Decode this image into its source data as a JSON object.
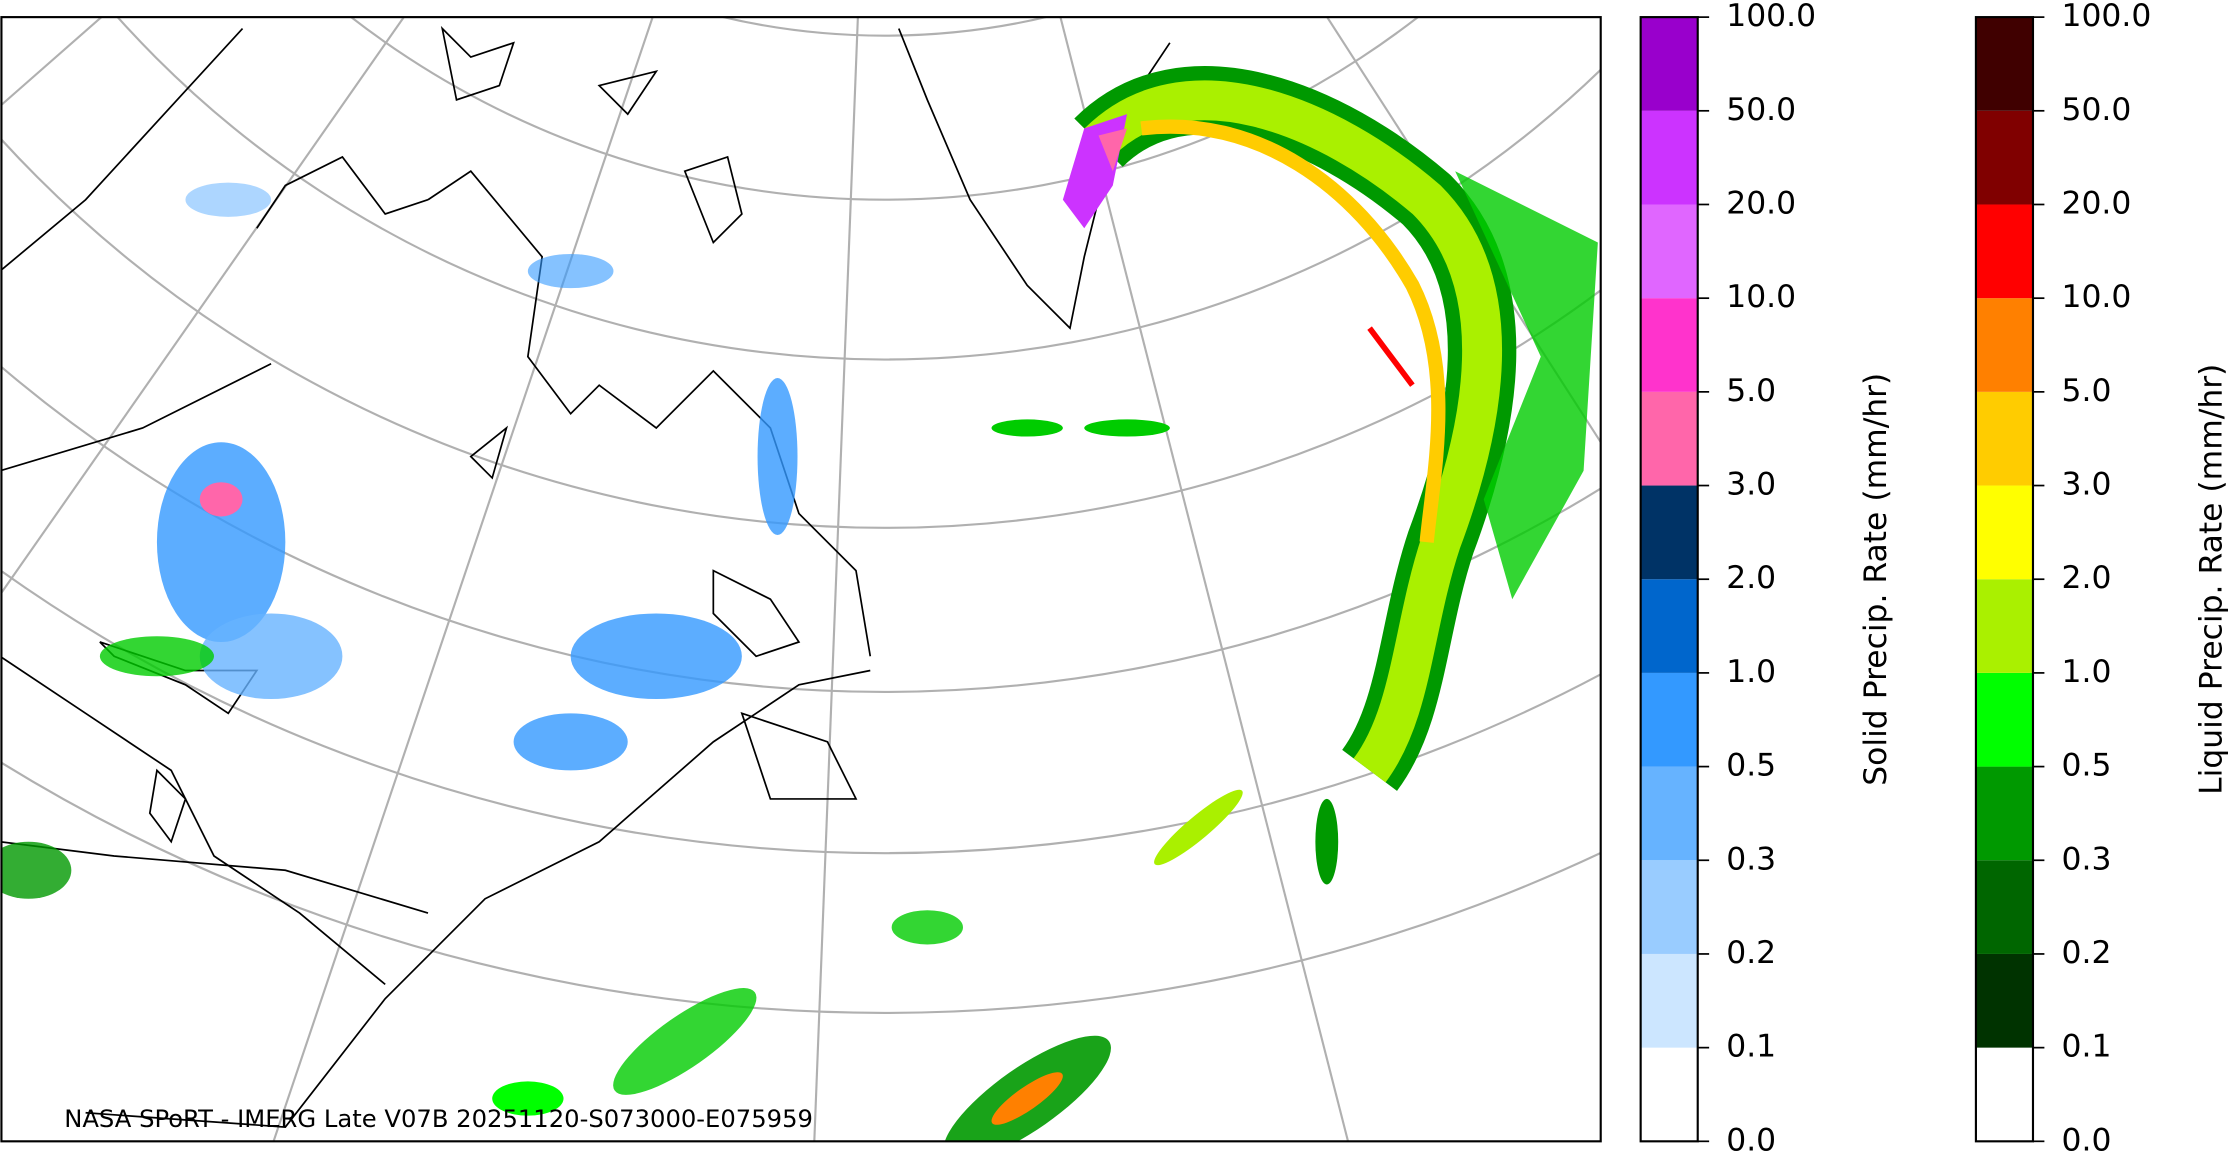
{
  "map": {
    "credit": "NASA SPoRT - IMERG Late V07B 20251120-S073000-E075959"
  },
  "colorbars": [
    {
      "label": "Solid Precip. Rate (mm/hr)",
      "ticks": [
        "0.0",
        "0.1",
        "0.2",
        "0.3",
        "0.5",
        "1.0",
        "2.0",
        "3.0",
        "5.0",
        "10.0",
        "20.0",
        "50.0",
        "100.0"
      ],
      "colors": [
        "#ffffff",
        "#cce6ff",
        "#99ccff",
        "#66b3ff",
        "#3399ff",
        "#0066cc",
        "#003366",
        "#ff66aa",
        "#ff33cc",
        "#e066ff",
        "#cc33ff",
        "#9900cc"
      ]
    },
    {
      "label": "Liquid Precip. Rate (mm/hr)",
      "ticks": [
        "0.0",
        "0.1",
        "0.2",
        "0.3",
        "0.5",
        "1.0",
        "2.0",
        "3.0",
        "5.0",
        "10.0",
        "20.0",
        "50.0",
        "100.0"
      ],
      "colors": [
        "#ffffff",
        "#003300",
        "#006600",
        "#009900",
        "#00ff00",
        "#aaf000",
        "#ffff00",
        "#ffcc00",
        "#ff8000",
        "#ff0000",
        "#800000",
        "#400000"
      ]
    }
  ]
}
